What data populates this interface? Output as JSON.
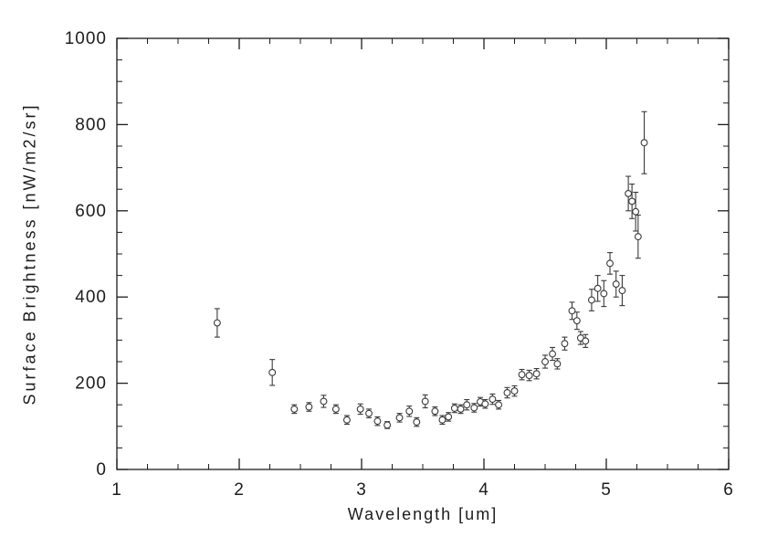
{
  "figure": {
    "background": "#ffffff"
  },
  "chart_data": {
    "type": "scatter",
    "title": "",
    "xlabel": "Wavelength [um]",
    "ylabel": "Surface Brightness [nW/m2/sr]",
    "xlim": [
      1,
      6
    ],
    "ylim": [
      0,
      1000
    ],
    "xticks": [
      1,
      2,
      3,
      4,
      5,
      6
    ],
    "yticks": [
      0,
      200,
      400,
      600,
      800,
      1000
    ],
    "x_minor_step": 0.25,
    "y_minor_step": 50,
    "grid": false,
    "legend": null,
    "marker": "open-circle",
    "error_bars": "vertical-with-caps",
    "axis_color": "#1c1c1c",
    "point_color": "#3a3a3a",
    "points": [
      {
        "x": 1.82,
        "y": 340,
        "err": 33
      },
      {
        "x": 2.27,
        "y": 225,
        "err": 30
      },
      {
        "x": 2.45,
        "y": 140,
        "err": 10
      },
      {
        "x": 2.57,
        "y": 145,
        "err": 10
      },
      {
        "x": 2.69,
        "y": 158,
        "err": 14
      },
      {
        "x": 2.79,
        "y": 140,
        "err": 10
      },
      {
        "x": 2.88,
        "y": 115,
        "err": 10
      },
      {
        "x": 2.99,
        "y": 140,
        "err": 12
      },
      {
        "x": 3.06,
        "y": 130,
        "err": 10
      },
      {
        "x": 3.13,
        "y": 112,
        "err": 10
      },
      {
        "x": 3.21,
        "y": 103,
        "err": 8
      },
      {
        "x": 3.31,
        "y": 120,
        "err": 10
      },
      {
        "x": 3.39,
        "y": 135,
        "err": 12
      },
      {
        "x": 3.45,
        "y": 110,
        "err": 10
      },
      {
        "x": 3.52,
        "y": 158,
        "err": 15
      },
      {
        "x": 3.6,
        "y": 135,
        "err": 10
      },
      {
        "x": 3.66,
        "y": 115,
        "err": 10
      },
      {
        "x": 3.71,
        "y": 122,
        "err": 10
      },
      {
        "x": 3.76,
        "y": 142,
        "err": 10
      },
      {
        "x": 3.81,
        "y": 140,
        "err": 10
      },
      {
        "x": 3.86,
        "y": 150,
        "err": 12
      },
      {
        "x": 3.92,
        "y": 143,
        "err": 10
      },
      {
        "x": 3.97,
        "y": 157,
        "err": 10
      },
      {
        "x": 4.01,
        "y": 152,
        "err": 10
      },
      {
        "x": 4.07,
        "y": 163,
        "err": 12
      },
      {
        "x": 4.12,
        "y": 150,
        "err": 10
      },
      {
        "x": 4.19,
        "y": 178,
        "err": 12
      },
      {
        "x": 4.25,
        "y": 182,
        "err": 12
      },
      {
        "x": 4.31,
        "y": 220,
        "err": 12
      },
      {
        "x": 4.37,
        "y": 218,
        "err": 12
      },
      {
        "x": 4.43,
        "y": 222,
        "err": 12
      },
      {
        "x": 4.5,
        "y": 250,
        "err": 15
      },
      {
        "x": 4.56,
        "y": 268,
        "err": 15
      },
      {
        "x": 4.6,
        "y": 245,
        "err": 12
      },
      {
        "x": 4.66,
        "y": 292,
        "err": 15
      },
      {
        "x": 4.72,
        "y": 368,
        "err": 20
      },
      {
        "x": 4.76,
        "y": 345,
        "err": 20
      },
      {
        "x": 4.79,
        "y": 305,
        "err": 15
      },
      {
        "x": 4.83,
        "y": 298,
        "err": 15
      },
      {
        "x": 4.88,
        "y": 393,
        "err": 25
      },
      {
        "x": 4.93,
        "y": 420,
        "err": 30
      },
      {
        "x": 4.98,
        "y": 408,
        "err": 30
      },
      {
        "x": 5.03,
        "y": 478,
        "err": 25
      },
      {
        "x": 5.08,
        "y": 430,
        "err": 30
      },
      {
        "x": 5.13,
        "y": 415,
        "err": 35
      },
      {
        "x": 5.18,
        "y": 640,
        "err": 40
      },
      {
        "x": 5.21,
        "y": 622,
        "err": 40
      },
      {
        "x": 5.24,
        "y": 598,
        "err": 45
      },
      {
        "x": 5.26,
        "y": 540,
        "err": 50
      },
      {
        "x": 5.31,
        "y": 758,
        "err": 72
      }
    ]
  }
}
